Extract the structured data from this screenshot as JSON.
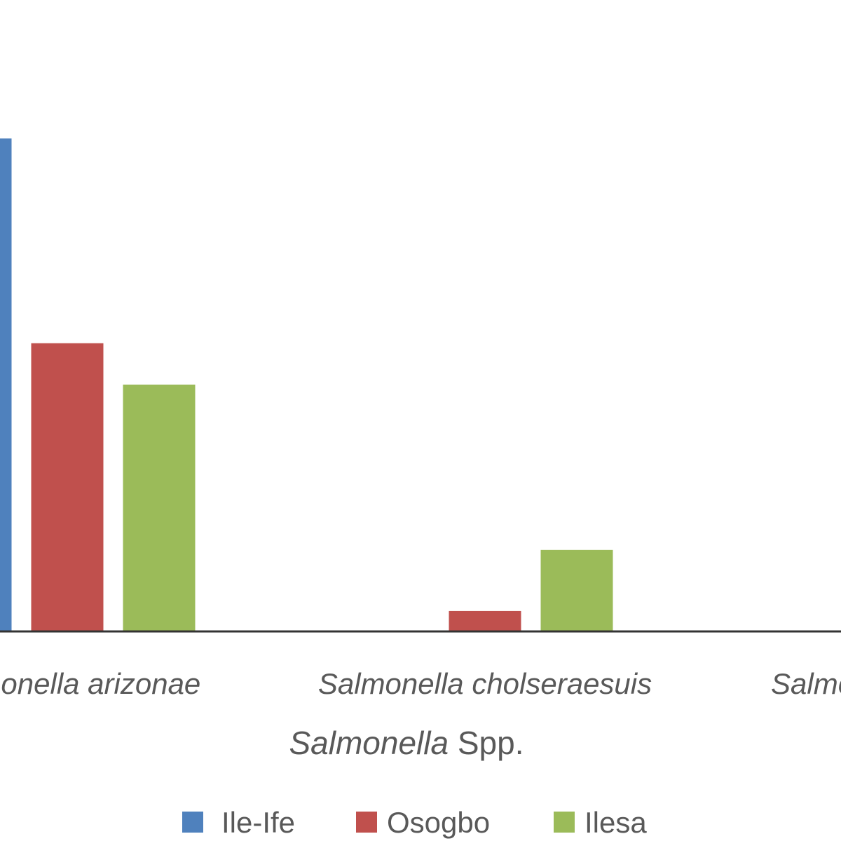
{
  "chart_data": {
    "type": "bar",
    "title": "",
    "xlabel": {
      "italic_part": "Salmonella",
      "plain_part": " Spp."
    },
    "ylabel": "",
    "categories": [
      "Salmonella arizonae",
      "Salmonella cholseraesuis",
      "Salmonella"
    ],
    "series": [
      {
        "name": "Ile-Ife",
        "color": "#4F81BD",
        "values": [
          25,
          0,
          null
        ]
      },
      {
        "name": "Osogbo",
        "color": "#C0504D",
        "values": [
          14.6,
          1.0,
          null
        ]
      },
      {
        "name": "Ilesa",
        "color": "#9BBB59",
        "values": [
          12.5,
          4.1,
          null
        ]
      }
    ],
    "ylim": [
      0,
      30
    ],
    "grid": false,
    "legend_position": "bottom",
    "note": "cropped view; y-axis not visible"
  }
}
